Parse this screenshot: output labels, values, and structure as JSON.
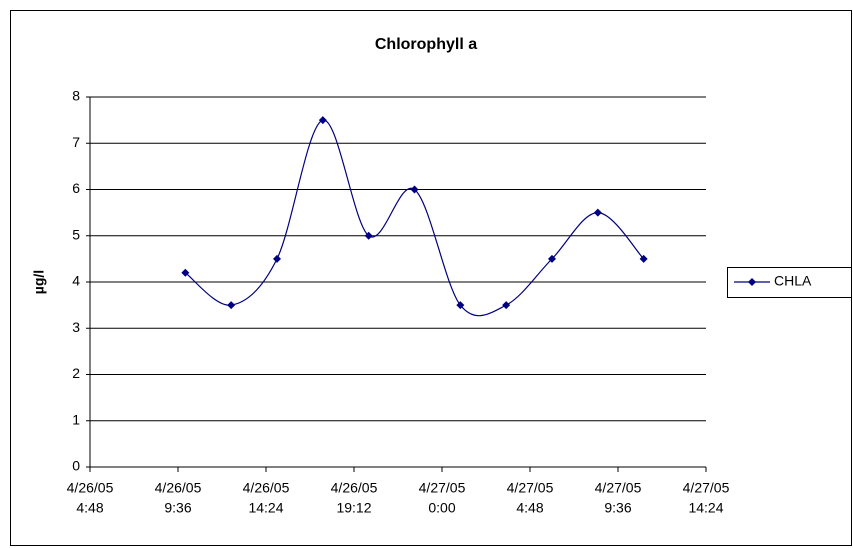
{
  "chart_data": {
    "type": "line",
    "title": "Chlorophyll a",
    "y_label": "µg/l",
    "x": [
      10,
      12.5,
      15,
      17.5,
      20,
      22.5,
      25,
      27.5,
      30,
      32.5,
      35
    ],
    "series": [
      {
        "name": "CHLA",
        "color": "#000080",
        "values": [
          4.2,
          3.5,
          4.5,
          7.5,
          5,
          6,
          3.5,
          3.5,
          4.5,
          5.5,
          4.5
        ]
      }
    ],
    "xlim": [
      4.8,
      38.4
    ],
    "xticks": [
      {
        "value": 4.8,
        "label": [
          "4/26/05",
          "4:48"
        ]
      },
      {
        "value": 9.6,
        "label": [
          "4/26/05",
          "9:36"
        ]
      },
      {
        "value": 14.4,
        "label": [
          "4/26/05",
          "14:24"
        ]
      },
      {
        "value": 19.2,
        "label": [
          "4/26/05",
          "19:12"
        ]
      },
      {
        "value": 24,
        "label": [
          "4/27/05",
          "0:00"
        ]
      },
      {
        "value": 28.8,
        "label": [
          "4/27/05",
          "4:48"
        ]
      },
      {
        "value": 33.6,
        "label": [
          "4/27/05",
          "9:36"
        ]
      },
      {
        "value": 38.4,
        "label": [
          "4/27/05",
          "14:24"
        ]
      }
    ],
    "ylim": [
      0,
      8
    ],
    "yticks": [
      0,
      1,
      2,
      3,
      4,
      5,
      6,
      7,
      8
    ],
    "grid": true,
    "smooth": true,
    "legend": "right"
  }
}
